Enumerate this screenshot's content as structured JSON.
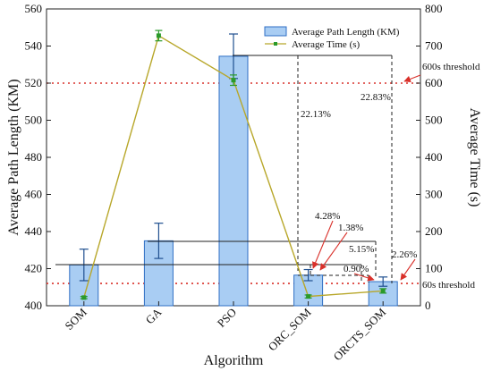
{
  "chart_data": {
    "type": "bar",
    "title": "",
    "xlabel": "Algorithm",
    "ylabel": "Average Path Length (KM)",
    "y2label": "Average Time (s)",
    "categories": [
      "SOM",
      "GA",
      "PSO",
      "ORC_SOM",
      "ORCTS_SOM"
    ],
    "ylim": [
      400,
      560
    ],
    "yticks": [
      400,
      420,
      440,
      460,
      480,
      500,
      520,
      540,
      560
    ],
    "y2lim": [
      0,
      800
    ],
    "y2ticks": [
      0,
      100,
      200,
      300,
      400,
      500,
      600,
      700,
      800
    ],
    "series": [
      {
        "name": "Average Path Length (KM)",
        "axis": "left",
        "kind": "bar",
        "color": "#a9cdf3",
        "edge": "#2f6fc4",
        "values": [
          422,
          435,
          534.5,
          416.5,
          413
        ],
        "error": [
          8.5,
          9.5,
          12,
          3,
          2.5
        ]
      },
      {
        "name": "Average Time (s)",
        "axis": "right",
        "kind": "line",
        "color": "#b8a72a",
        "marker": "#2a9a2a",
        "values": [
          22,
          728,
          608,
          25,
          40
        ],
        "error": [
          3,
          14,
          14,
          4,
          6
        ]
      }
    ],
    "thresholds": [
      {
        "label": "600s threshold",
        "value": 600,
        "axis": "right",
        "color": "#d9302a"
      },
      {
        "label": "60s threshold",
        "value": 60,
        "axis": "right",
        "color": "#d9302a"
      }
    ],
    "annotations": [
      {
        "text": "22.13%"
      },
      {
        "text": "22.83%"
      },
      {
        "text": "4.28%"
      },
      {
        "text": "1.38%"
      },
      {
        "text": "5.15%"
      },
      {
        "text": "0.90%"
      },
      {
        "text": "2.26%"
      }
    ],
    "legend_position": "top-right",
    "grid": false
  }
}
